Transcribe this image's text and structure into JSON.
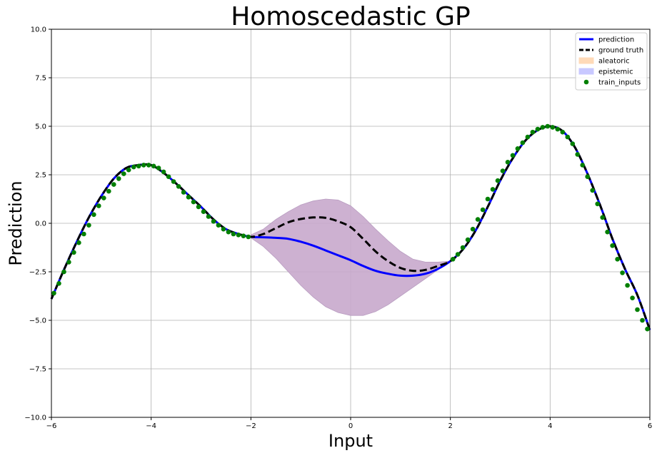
{
  "chart_data": {
    "type": "line",
    "title": "Homoscedastic GP",
    "xlabel": "Input",
    "ylabel": "Prediction",
    "xlim": [
      -6,
      6
    ],
    "ylim": [
      -10,
      10
    ],
    "grid": true,
    "legend_placement": "top-right",
    "x_ticks": [
      -6,
      -4,
      -2,
      0,
      2,
      4,
      6
    ],
    "x_tick_labels": [
      "−6",
      "−4",
      "−2",
      "0",
      "2",
      "4",
      "6"
    ],
    "y_ticks": [
      -10,
      -7.5,
      -5,
      -2.5,
      0,
      2.5,
      5,
      7.5,
      10
    ],
    "y_tick_labels": [
      "−10.0",
      "−7.5",
      "−5.0",
      "−2.5",
      "0.0",
      "2.5",
      "5.0",
      "7.5",
      "10.0"
    ],
    "colors": {
      "prediction": "#0000ff",
      "ground_truth": "#000000",
      "aleatoric": "#ffdab8",
      "epistemic": "#c8c8ff",
      "uncertainty_fill": "#c8a8cc",
      "train_inputs": "#007f00",
      "grid": "#b0b0b0"
    },
    "legend": [
      {
        "key": "prediction",
        "label": "prediction",
        "style": "solid-line"
      },
      {
        "key": "ground_truth",
        "label": "ground truth",
        "style": "dashed-line"
      },
      {
        "key": "aleatoric",
        "label": "aleatoric",
        "style": "patch"
      },
      {
        "key": "epistemic",
        "label": "epistemic",
        "style": "patch"
      },
      {
        "key": "train_inputs",
        "label": "train_inputs",
        "style": "marker"
      }
    ],
    "series": [
      {
        "name": "ground truth",
        "x": [
          -6,
          -5.75,
          -5.5,
          -5.25,
          -5,
          -4.75,
          -4.5,
          -4.25,
          -4,
          -3.75,
          -3.5,
          -3.25,
          -3,
          -2.75,
          -2.5,
          -2.25,
          -2,
          -1.75,
          -1.5,
          -1.25,
          -1,
          -0.75,
          -0.5,
          -0.25,
          0,
          0.25,
          0.5,
          0.75,
          1,
          1.25,
          1.5,
          1.75,
          2,
          2.25,
          2.5,
          2.75,
          3,
          3.25,
          3.5,
          3.75,
          4,
          4.25,
          4.5,
          4.75,
          5,
          5.25,
          5.5,
          5.75,
          6
        ],
        "y": [
          -3.9,
          -2.4,
          -1.0,
          0.3,
          1.4,
          2.3,
          2.85,
          3.0,
          3.0,
          2.6,
          2.05,
          1.45,
          0.85,
          0.2,
          -0.3,
          -0.55,
          -0.7,
          -0.55,
          -0.25,
          0.05,
          0.22,
          0.3,
          0.28,
          0.1,
          -0.2,
          -0.8,
          -1.45,
          -1.95,
          -2.3,
          -2.45,
          -2.4,
          -2.2,
          -1.95,
          -1.35,
          -0.4,
          0.85,
          2.2,
          3.35,
          4.25,
          4.8,
          5.0,
          4.75,
          3.9,
          2.55,
          0.95,
          -0.8,
          -2.35,
          -3.7,
          -5.5
        ]
      },
      {
        "name": "prediction",
        "x": [
          -6,
          -5.75,
          -5.5,
          -5.25,
          -5,
          -4.75,
          -4.5,
          -4.25,
          -4,
          -3.75,
          -3.5,
          -3.25,
          -3,
          -2.75,
          -2.5,
          -2.25,
          -2,
          -1.75,
          -1.5,
          -1.25,
          -1,
          -0.75,
          -0.5,
          -0.25,
          0,
          0.25,
          0.5,
          0.75,
          1,
          1.25,
          1.5,
          1.75,
          2,
          2.25,
          2.5,
          2.75,
          3,
          3.25,
          3.5,
          3.75,
          4,
          4.25,
          4.5,
          4.75,
          5,
          5.25,
          5.5,
          5.75,
          6
        ],
        "y": [
          -3.9,
          -2.4,
          -1.0,
          0.3,
          1.4,
          2.3,
          2.85,
          3.0,
          3.0,
          2.6,
          2.05,
          1.45,
          0.85,
          0.2,
          -0.3,
          -0.55,
          -0.7,
          -0.72,
          -0.75,
          -0.8,
          -0.95,
          -1.15,
          -1.4,
          -1.65,
          -1.9,
          -2.2,
          -2.45,
          -2.6,
          -2.7,
          -2.7,
          -2.6,
          -2.35,
          -1.95,
          -1.35,
          -0.4,
          0.85,
          2.2,
          3.35,
          4.25,
          4.8,
          5.0,
          4.75,
          3.9,
          2.55,
          0.95,
          -0.8,
          -2.35,
          -3.7,
          -5.5
        ]
      },
      {
        "name": "uncertainty band",
        "x": [
          -2,
          -1.75,
          -1.5,
          -1.25,
          -1,
          -0.75,
          -0.5,
          -0.25,
          0,
          0.25,
          0.5,
          0.75,
          1,
          1.25,
          1.5,
          1.75,
          2
        ],
        "upper": [
          -0.6,
          -0.3,
          0.2,
          0.6,
          0.95,
          1.15,
          1.25,
          1.2,
          0.9,
          0.35,
          -0.3,
          -0.9,
          -1.45,
          -1.85,
          -2.0,
          -2.0,
          -1.95
        ],
        "lower": [
          -0.75,
          -1.2,
          -1.8,
          -2.5,
          -3.2,
          -3.8,
          -4.3,
          -4.6,
          -4.75,
          -4.75,
          -4.55,
          -4.2,
          -3.75,
          -3.3,
          -2.85,
          -2.4,
          -1.95
        ]
      },
      {
        "name": "train_inputs",
        "x": [
          -5.95,
          -5.85,
          -5.75,
          -5.65,
          -5.55,
          -5.45,
          -5.35,
          -5.25,
          -5.15,
          -5.05,
          -4.95,
          -4.85,
          -4.75,
          -4.65,
          -4.55,
          -4.45,
          -4.35,
          -4.25,
          -4.15,
          -4.05,
          -3.95,
          -3.85,
          -3.75,
          -3.65,
          -3.55,
          -3.45,
          -3.35,
          -3.25,
          -3.15,
          -3.05,
          -2.95,
          -2.85,
          -2.75,
          -2.65,
          -2.55,
          -2.45,
          -2.35,
          -2.25,
          -2.15,
          -2.05,
          2.05,
          2.15,
          2.25,
          2.35,
          2.45,
          2.55,
          2.65,
          2.75,
          2.85,
          2.95,
          3.05,
          3.15,
          3.25,
          3.35,
          3.45,
          3.55,
          3.65,
          3.75,
          3.85,
          3.95,
          4.05,
          4.15,
          4.25,
          4.35,
          4.45,
          4.55,
          4.65,
          4.75,
          4.85,
          4.95,
          5.05,
          5.15,
          5.25,
          5.35,
          5.45,
          5.55,
          5.65,
          5.75,
          5.85,
          5.95
        ],
        "y": [
          -3.6,
          -3.1,
          -2.5,
          -2.0,
          -1.5,
          -1.0,
          -0.55,
          -0.1,
          0.45,
          0.9,
          1.3,
          1.65,
          2.0,
          2.3,
          2.55,
          2.75,
          2.9,
          2.95,
          3.0,
          3.0,
          2.95,
          2.85,
          2.65,
          2.4,
          2.15,
          1.9,
          1.6,
          1.35,
          1.1,
          0.85,
          0.6,
          0.35,
          0.1,
          -0.1,
          -0.3,
          -0.45,
          -0.55,
          -0.6,
          -0.65,
          -0.7,
          -1.85,
          -1.6,
          -1.25,
          -0.85,
          -0.3,
          0.2,
          0.7,
          1.25,
          1.75,
          2.2,
          2.7,
          3.15,
          3.5,
          3.85,
          4.15,
          4.45,
          4.7,
          4.85,
          4.95,
          5.0,
          4.95,
          4.85,
          4.7,
          4.45,
          4.1,
          3.55,
          3.0,
          2.4,
          1.7,
          1.0,
          0.3,
          -0.45,
          -1.15,
          -1.85,
          -2.55,
          -3.2,
          -3.85,
          -4.45,
          -5.0,
          -5.45
        ]
      }
    ]
  }
}
